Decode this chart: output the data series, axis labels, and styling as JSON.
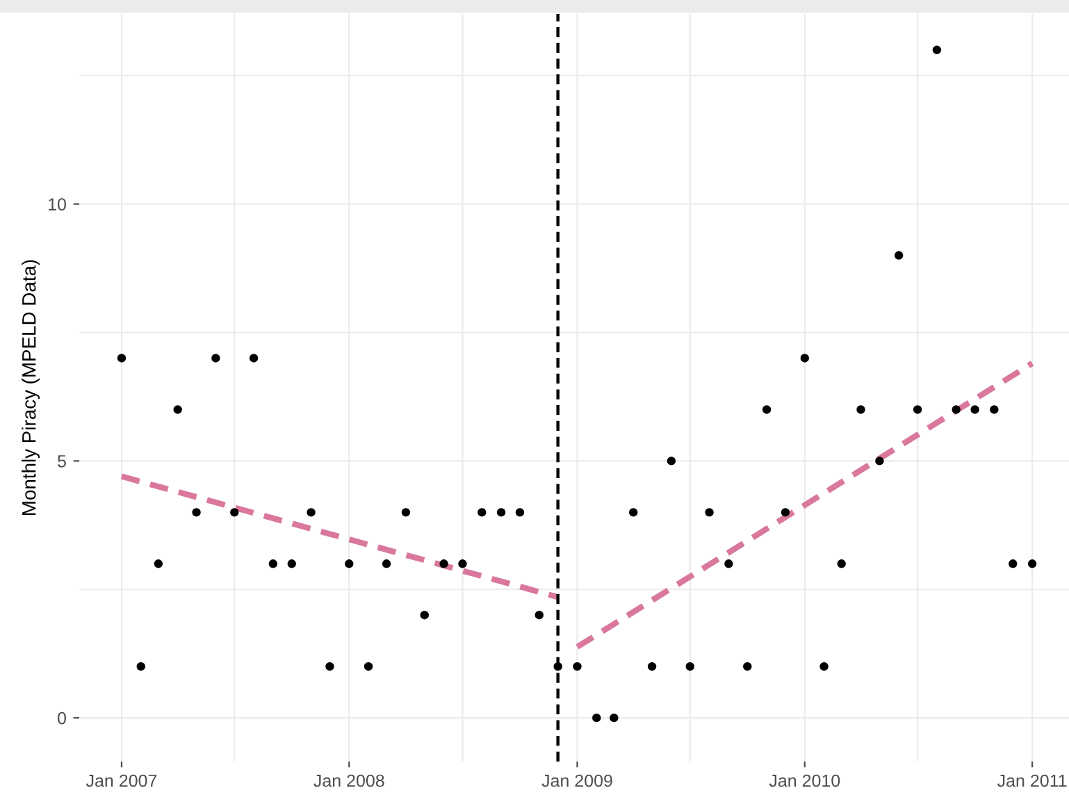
{
  "chart_data": {
    "type": "scatter",
    "ylabel": "Monthly Piracy (MPELD Data)",
    "series": [
      {
        "color": "#000000",
        "marker": "circle",
        "x": [
          "2007-01",
          "2007-02",
          "2007-03",
          "2007-04",
          "2007-05",
          "2007-06",
          "2007-07",
          "2007-08",
          "2007-09",
          "2007-10",
          "2007-11",
          "2007-12",
          "2008-01",
          "2008-02",
          "2008-03",
          "2008-04",
          "2008-05",
          "2008-06",
          "2008-07",
          "2008-08",
          "2008-09",
          "2008-10",
          "2008-11",
          "2008-12",
          "2009-01",
          "2009-02",
          "2009-03",
          "2009-04",
          "2009-05",
          "2009-06",
          "2009-07",
          "2009-08",
          "2009-09",
          "2009-10",
          "2009-11",
          "2009-12",
          "2010-01",
          "2010-02",
          "2010-03",
          "2010-04",
          "2010-05",
          "2010-06",
          "2010-07",
          "2010-08",
          "2010-09",
          "2010-10",
          "2010-11",
          "2010-12",
          "2011-01"
        ],
        "values": [
          7,
          1,
          3,
          6,
          4,
          7,
          4,
          7,
          3,
          3,
          4,
          1,
          3,
          1,
          3,
          4,
          2,
          3,
          3,
          4,
          4,
          4,
          2,
          1,
          1,
          0,
          0,
          4,
          1,
          5,
          1,
          4,
          3,
          1,
          6,
          4,
          7,
          1,
          3,
          6,
          5,
          9,
          6,
          13,
          6,
          6,
          6,
          3,
          3
        ]
      },
      {
        "type": "line",
        "color": "#d9779c",
        "line_style": "dashed",
        "marker": "none",
        "x": [
          "2007-01",
          "2008-12"
        ],
        "values": [
          4.7,
          2.35
        ]
      },
      {
        "type": "line",
        "color": "#d9779c",
        "line_style": "dashed",
        "marker": "none",
        "x": [
          "2009-01",
          "2011-01"
        ],
        "values": [
          1.38,
          6.9
        ]
      }
    ],
    "ref_lines": [
      {
        "axis": "x",
        "value": "2008-12",
        "color": "#000000",
        "line_style": "dashed"
      }
    ],
    "xlim": [
      "2006-10-25",
      "2011-03-01"
    ],
    "xticks": [
      {
        "value": "2007-01",
        "label": "Jan 2007"
      },
      {
        "value": "2007-07",
        "label": null
      },
      {
        "value": "2008-01",
        "label": "Jan 2008"
      },
      {
        "value": "2008-07",
        "label": null
      },
      {
        "value": "2009-01",
        "label": "Jan 2009"
      },
      {
        "value": "2009-07",
        "label": null
      },
      {
        "value": "2010-01",
        "label": "Jan 2010"
      },
      {
        "value": "2010-07",
        "label": null
      },
      {
        "value": "2011-01",
        "label": "Jan 2011"
      }
    ],
    "ylim": [
      -0.85,
      13.7
    ],
    "yticks": [
      0,
      {
        "value": 2.5,
        "label": null
      },
      5,
      {
        "value": 7.5,
        "label": null
      },
      10,
      {
        "value": 12.5,
        "label": null
      }
    ],
    "grid": true
  }
}
